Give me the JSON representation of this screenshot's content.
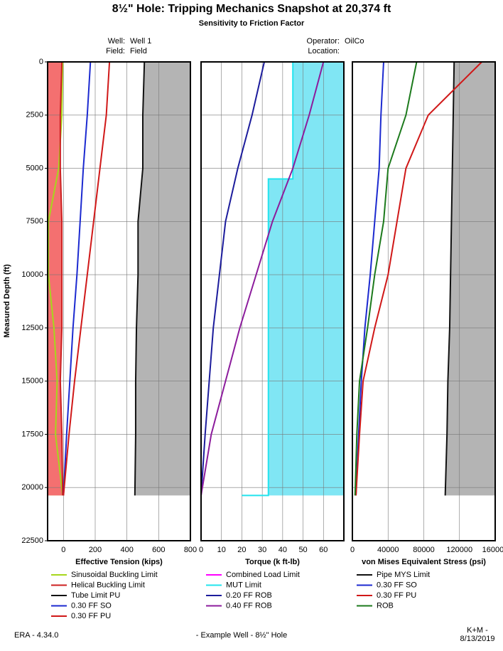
{
  "title": "8½\" Hole: Tripping Mechanics Snapshot at 20,374 ft",
  "subtitle": "Sensitivity to Friction Factor",
  "header": {
    "well_label": "Well:",
    "well": "Well 1",
    "field_label": "Field:",
    "field": "Field",
    "operator_label": "Operator:",
    "operator": "OilCo",
    "location_label": "Location:"
  },
  "footer": {
    "version": "ERA - 4.34.0",
    "well": "- Example Well - 8½\" Hole",
    "company": "K+M -",
    "date": "8/13/2019"
  },
  "chart_data": [
    {
      "type": "line",
      "ylabel": "Measured Depth (ft)",
      "ylim": [
        0,
        22500
      ],
      "yticks": [
        0,
        2500,
        5000,
        7500,
        10000,
        12500,
        15000,
        17500,
        20000,
        22500
      ],
      "xlabel": "Effective Tension (kips)",
      "xlim": [
        -100,
        800
      ],
      "xticks": [
        0,
        200,
        400,
        600,
        800
      ],
      "grid": true,
      "depths": [
        0,
        2500,
        5000,
        7500,
        10000,
        12500,
        15000,
        17500,
        20374
      ],
      "series": [
        {
          "name": "Sinusoidal Buckling Limit",
          "color": "#a6d71c",
          "fill": "#c8ec70",
          "values": [
            -5,
            -10,
            -30,
            -95,
            -95,
            -60,
            -40,
            -50,
            -5
          ]
        },
        {
          "name": "Helical Buckling Limit",
          "color": "#cc2020",
          "fill": "#f47070",
          "values": [
            -10,
            -20,
            -20,
            -10,
            -10,
            -10,
            -20,
            -10,
            -5
          ]
        },
        {
          "name": "Tube Limit PU",
          "color": "#111111",
          "fill": "#b4b4b4",
          "values": [
            510,
            500,
            500,
            470,
            470,
            460,
            455,
            455,
            450
          ]
        },
        {
          "name": "0.30 FF SO",
          "color": "#1c2ad0",
          "values": [
            170,
            150,
            125,
            105,
            85,
            60,
            40,
            20,
            0
          ]
        },
        {
          "name": "0.30 FF PU",
          "color": "#d01818",
          "values": [
            290,
            270,
            230,
            190,
            150,
            110,
            70,
            35,
            0
          ]
        }
      ]
    },
    {
      "type": "line",
      "xlabel": "Torque (k ft-lb)",
      "xlim": [
        0,
        70
      ],
      "xticks": [
        0,
        10,
        20,
        30,
        40,
        50,
        60
      ],
      "grid": true,
      "depths": [
        0,
        2500,
        5000,
        7500,
        10000,
        12500,
        15000,
        17500,
        20374
      ],
      "series": [
        {
          "name": "Combined Load Limit",
          "color": "#ff00ff"
        },
        {
          "name": "MUT Limit",
          "color": "#22e4ee",
          "fill": "#80e6f4",
          "depths": [
            0,
            5500,
            5500,
            20374,
            20374
          ],
          "values": [
            45,
            45,
            33,
            33,
            20
          ]
        },
        {
          "name": "0.20 FF ROB",
          "color": "#1c1c9c",
          "values": [
            31,
            25,
            18,
            12,
            9,
            6,
            4,
            2,
            0
          ]
        },
        {
          "name": "0.40 FF ROB",
          "color": "#8c1c9c",
          "values": [
            60,
            53,
            45,
            35,
            27,
            19,
            12,
            5,
            0
          ]
        }
      ]
    },
    {
      "type": "line",
      "xlabel": "von Mises Equivalent Stress (psi)",
      "xlim": [
        0,
        160000
      ],
      "xticks": [
        0,
        40000,
        80000,
        120000,
        160000
      ],
      "grid": true,
      "depths": [
        0,
        2500,
        5000,
        7500,
        10000,
        12500,
        15000,
        17500,
        20374
      ],
      "series": [
        {
          "name": "Pipe MYS Limit",
          "color": "#111111",
          "fill": "#b4b4b4",
          "values": [
            114000,
            113000,
            112000,
            111000,
            110000,
            109000,
            107000,
            106000,
            104000
          ]
        },
        {
          "name": "0.30 FF SO",
          "color": "#1c2ad0",
          "values": [
            35000,
            32000,
            30000,
            25000,
            20000,
            14000,
            10000,
            7000,
            4000
          ]
        },
        {
          "name": "0.30 FF PU",
          "color": "#d01818",
          "values": [
            145000,
            85000,
            60000,
            50000,
            40000,
            25000,
            12000,
            8000,
            4000
          ]
        },
        {
          "name": "ROB",
          "color": "#1c7a1c",
          "values": [
            72000,
            60000,
            40000,
            35000,
            25000,
            17000,
            8000,
            5000,
            3000
          ]
        }
      ]
    }
  ]
}
